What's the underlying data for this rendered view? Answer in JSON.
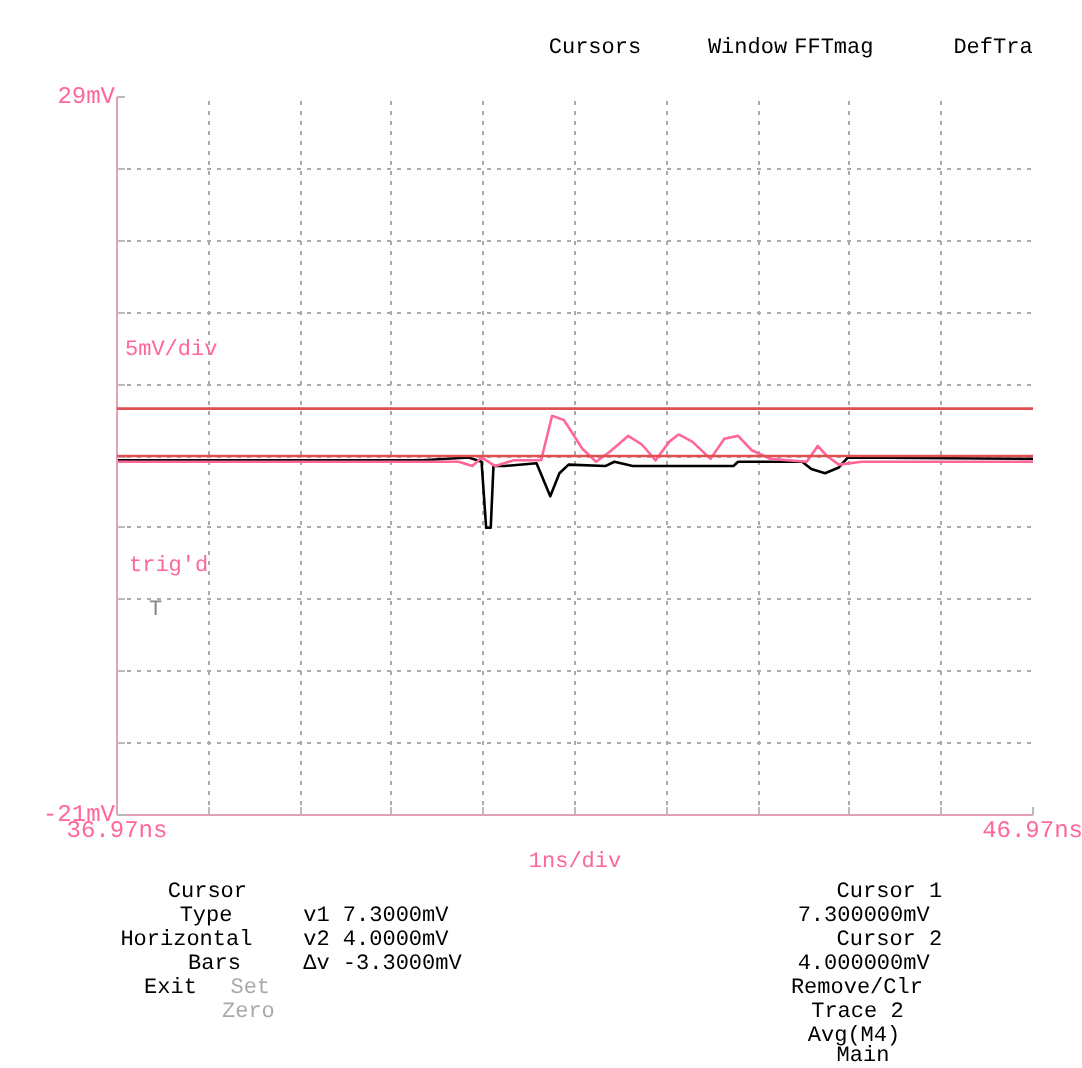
{
  "chart_data": {
    "type": "line",
    "xlabel": "1ns/div",
    "ylabel": "5mV/div",
    "xlim": [
      36.97,
      46.97
    ],
    "ylim": [
      -21,
      29
    ],
    "xticks": [
      {
        "value": 36.97,
        "label": "36.97ns"
      },
      {
        "value": 37.97,
        "label": null
      },
      {
        "value": 38.97,
        "label": null
      },
      {
        "value": 39.97,
        "label": null
      },
      {
        "value": 40.97,
        "label": null
      },
      {
        "value": 41.97,
        "label": null
      },
      {
        "value": 42.97,
        "label": null
      },
      {
        "value": 43.97,
        "label": null
      },
      {
        "value": 44.97,
        "label": null
      },
      {
        "value": 45.97,
        "label": null
      },
      {
        "value": 46.97,
        "label": "46.97ns"
      }
    ],
    "yticks": [
      {
        "value": -21,
        "label": "-21mV"
      },
      {
        "value": -16,
        "label": null
      },
      {
        "value": -11,
        "label": null
      },
      {
        "value": -6,
        "label": null
      },
      {
        "value": -1,
        "label": null
      },
      {
        "value": 4,
        "label": null
      },
      {
        "value": 9,
        "label": null
      },
      {
        "value": 14,
        "label": null
      },
      {
        "value": 19,
        "label": null
      },
      {
        "value": 24,
        "label": null
      },
      {
        "value": 29,
        "label": "29mV"
      }
    ],
    "grid": true,
    "marker": "none",
    "line_style": "solid",
    "series": [
      {
        "color": "#000000",
        "x": [
          36.97,
          40.3,
          40.81,
          40.95,
          41.0,
          41.05,
          41.08,
          41.2,
          41.55,
          41.7,
          41.8,
          41.9,
          42.3,
          42.4,
          42.6,
          43.7,
          43.75,
          44.45,
          44.55,
          44.7,
          44.85,
          44.95,
          46.97
        ],
        "values": [
          3.7,
          3.7,
          3.9,
          3.6,
          -1.0,
          -1.0,
          3.3,
          3.3,
          3.5,
          1.2,
          2.8,
          3.4,
          3.3,
          3.6,
          3.3,
          3.3,
          3.6,
          3.6,
          3.1,
          2.8,
          3.2,
          3.9,
          3.8
        ]
      },
      {
        "color": "#ff6699",
        "x": [
          36.97,
          40.7,
          40.85,
          40.95,
          41.1,
          41.3,
          41.6,
          41.72,
          41.85,
          42.05,
          42.2,
          42.35,
          42.55,
          42.7,
          42.85,
          43.0,
          43.1,
          43.25,
          43.45,
          43.6,
          43.75,
          43.9,
          44.1,
          44.5,
          44.62,
          44.72,
          44.85,
          45.1,
          46.97
        ],
        "values": [
          3.6,
          3.6,
          3.3,
          3.9,
          3.3,
          3.7,
          3.7,
          6.8,
          6.5,
          4.5,
          3.6,
          4.3,
          5.4,
          4.8,
          3.7,
          5.0,
          5.5,
          5.0,
          3.8,
          5.2,
          5.4,
          4.4,
          3.8,
          3.6,
          4.7,
          4.0,
          3.4,
          3.6,
          3.6
        ]
      }
    ],
    "ref_lines": [
      {
        "axis": "y",
        "value": 7.3,
        "color": "#e05050"
      },
      {
        "axis": "y",
        "value": 4.0,
        "color": "#e05050"
      }
    ],
    "annotations": [
      "Cursors",
      "Window",
      "FFTmag",
      "DefTra",
      "trig'd",
      "T",
      "Cursor",
      "Type",
      "Horizontal",
      "Bars",
      "v1   7.3000mV",
      "v2   4.0000mV",
      "Δv  -3.3000mV",
      "Cursor 1",
      "7.300000mV",
      "Cursor 2",
      "4.000000mV",
      "Exit",
      "Set",
      "Zero",
      "Remove/Clr",
      "Trace 2",
      "Avg(M4)",
      "Main"
    ]
  }
}
